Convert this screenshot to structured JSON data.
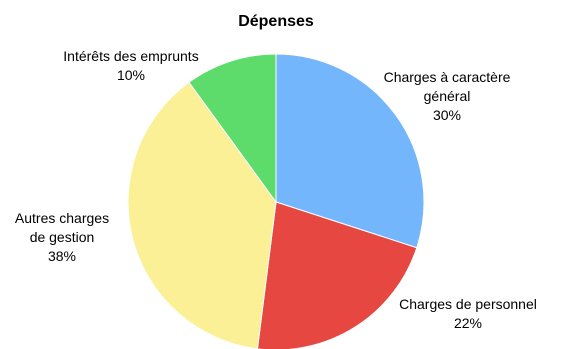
{
  "chart_data": {
    "type": "pie",
    "title": "Dépenses",
    "slices": [
      {
        "label_lines": [
          "Charges à caractère",
          "général"
        ],
        "percent_text": "30%",
        "value": 30,
        "color": "#73b6fb"
      },
      {
        "label_lines": [
          "Charges de personnel"
        ],
        "percent_text": "22%",
        "value": 22,
        "color": "#e64740"
      },
      {
        "label_lines": [
          "Autres charges",
          "de gestion"
        ],
        "percent_text": "38%",
        "value": 38,
        "color": "#fbf096"
      },
      {
        "label_lines": [
          "Intérêts des emprunts"
        ],
        "percent_text": "10%",
        "value": 10,
        "color": "#5ddc6b"
      }
    ],
    "start": "12 o'clock",
    "direction": "clockwise"
  }
}
